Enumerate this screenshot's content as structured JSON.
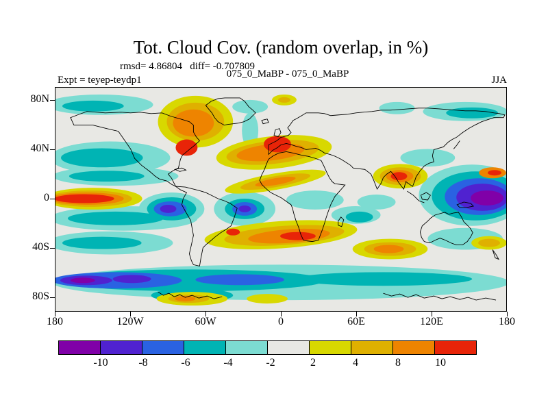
{
  "title": "Tot. Cloud Cov. (random overlap, in %)",
  "annotations": {
    "stats": "rmsd= 4.86804   diff= -0.707809",
    "comparison": "075_0_MaBP - 075_0_MaBP",
    "experiment": "Expt = teyep-teydp1",
    "season": "JJA"
  },
  "chart_data": {
    "type": "heatmap",
    "subtype": "filled-contour-world-map",
    "title": "Tot. Cloud Cov. (random overlap, in %)",
    "comparison": "075_0_MaBP - 075_0_MaBP",
    "experiment": "teyep-teydp1",
    "season": "JJA",
    "statistics": {
      "rmsd": 4.86804,
      "diff": -0.707809
    },
    "units": "%",
    "x_axis": {
      "ticks": [
        "180",
        "120W",
        "60W",
        "0",
        "60E",
        "120E",
        "180"
      ]
    },
    "y_axis": {
      "ticks": [
        "80N",
        "40N",
        "0",
        "40S",
        "80S"
      ]
    },
    "colorbar": {
      "orientation": "horizontal",
      "boundary_labels": [
        "-10",
        "-8",
        "-6",
        "-4",
        "-2",
        "2",
        "4",
        "8",
        "10"
      ],
      "colors": [
        "#8000a8",
        "#5022d0",
        "#2a62e2",
        "#00b4b4",
        "#7cdcd2",
        "#e8e8e4",
        "#d8d800",
        "#dfb000",
        "#ee8400",
        "#e82408"
      ]
    },
    "features": [
      {
        "region": "equatorial eastern Pacific (180-140W)",
        "sign": "positive",
        "magnitude": "> +10"
      },
      {
        "region": "equatorial western Pacific / Maritime Continent (130E-180)",
        "sign": "negative",
        "magnitude": "< -10"
      },
      {
        "region": "Greenland / North Atlantic 60-80N",
        "sign": "positive",
        "magnitude": "+4 to +10"
      },
      {
        "region": "Europe ~40-50N",
        "sign": "positive",
        "magnitude": "> +8"
      },
      {
        "region": "North Pacific 30-60N",
        "sign": "negative",
        "magnitude": "-6 to -2"
      },
      {
        "region": "Amazon and equatorial Atlantic",
        "sign": "negative",
        "magnitude": "-10 to -6"
      },
      {
        "region": "Bay of Bengal / Southeast Asia ~15N",
        "sign": "positive",
        "magnitude": "+8 to +10"
      },
      {
        "region": "subtropical South Atlantic to Africa 20-40S",
        "sign": "positive",
        "magnitude": "+4 to +10"
      },
      {
        "region": "Southern Ocean ~60S",
        "sign": "negative",
        "magnitude": "-10 to -4"
      },
      {
        "region": "Antarctic coast sector ~100-60W",
        "sign": "positive",
        "magnitude": "+2 to +6"
      }
    ]
  }
}
